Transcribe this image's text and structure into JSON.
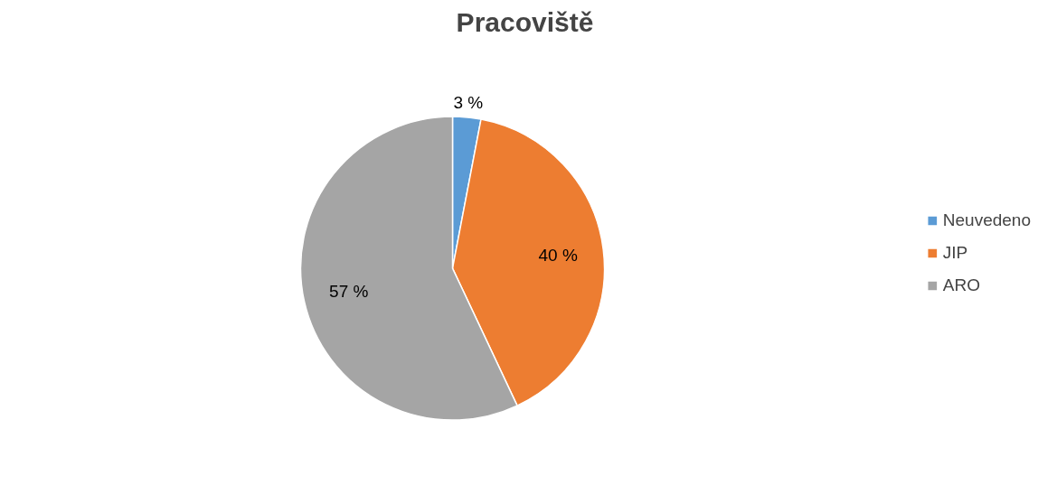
{
  "chart_data": {
    "type": "pie",
    "title": "Pracoviště",
    "categories": [
      "Neuvedeno",
      "JIP",
      "ARO"
    ],
    "values": [
      3,
      40,
      57
    ],
    "colors": [
      "#5b9bd5",
      "#ed7d31",
      "#a5a5a5"
    ],
    "value_labels": [
      "3 %",
      "40 %",
      "57 %"
    ],
    "legend": "right"
  }
}
